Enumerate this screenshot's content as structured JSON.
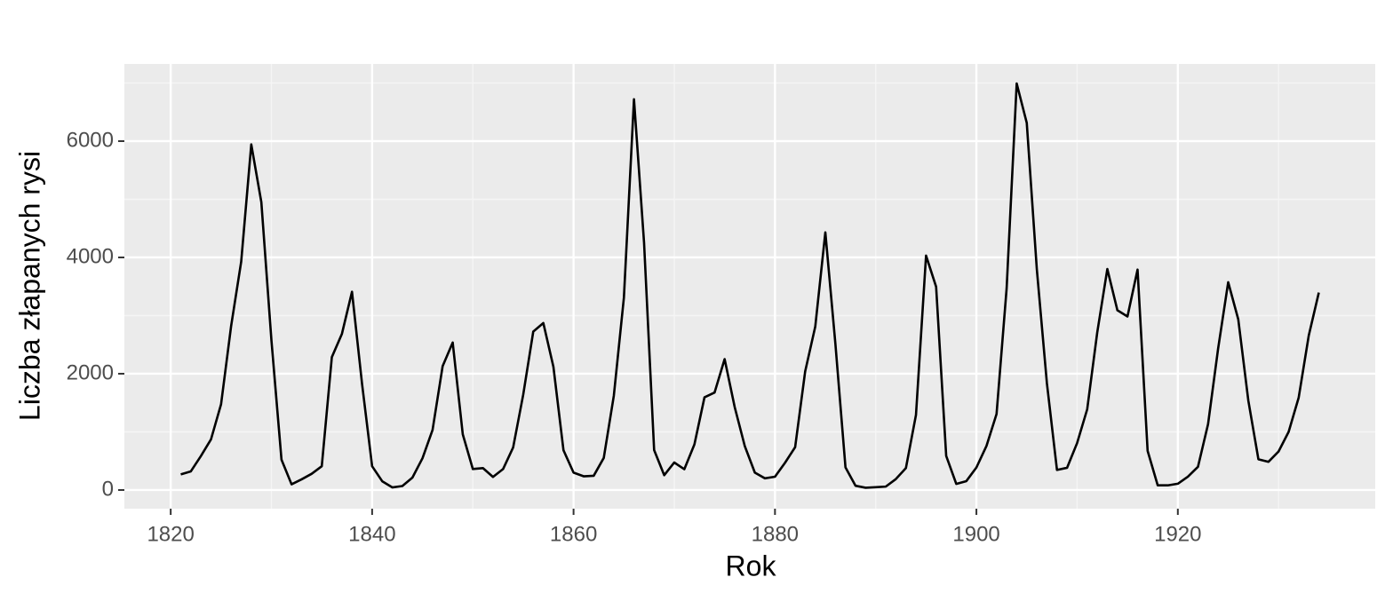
{
  "chart_data": {
    "type": "line",
    "x_label": "Rok",
    "y_label": "Liczba złapanych rysi",
    "x": [
      1821,
      1822,
      1823,
      1824,
      1825,
      1826,
      1827,
      1828,
      1829,
      1830,
      1831,
      1832,
      1833,
      1834,
      1835,
      1836,
      1837,
      1838,
      1839,
      1840,
      1841,
      1842,
      1843,
      1844,
      1845,
      1846,
      1847,
      1848,
      1849,
      1850,
      1851,
      1852,
      1853,
      1854,
      1855,
      1856,
      1857,
      1858,
      1859,
      1860,
      1861,
      1862,
      1863,
      1864,
      1865,
      1866,
      1867,
      1868,
      1869,
      1870,
      1871,
      1872,
      1873,
      1874,
      1875,
      1876,
      1877,
      1878,
      1879,
      1880,
      1881,
      1882,
      1883,
      1884,
      1885,
      1886,
      1887,
      1888,
      1889,
      1890,
      1891,
      1892,
      1893,
      1894,
      1895,
      1896,
      1897,
      1898,
      1899,
      1900,
      1901,
      1902,
      1903,
      1904,
      1905,
      1906,
      1907,
      1908,
      1909,
      1910,
      1911,
      1912,
      1913,
      1914,
      1915,
      1916,
      1917,
      1918,
      1919,
      1920,
      1921,
      1922,
      1923,
      1924,
      1925,
      1926,
      1927,
      1928,
      1929,
      1930,
      1931,
      1932,
      1933,
      1934
    ],
    "values": [
      269,
      321,
      585,
      871,
      1475,
      2821,
      3928,
      5943,
      4950,
      2577,
      523,
      98,
      184,
      279,
      409,
      2285,
      2685,
      3409,
      1824,
      409,
      151,
      45,
      68,
      213,
      546,
      1033,
      2129,
      2536,
      957,
      361,
      377,
      225,
      360,
      731,
      1638,
      2725,
      2871,
      2119,
      684,
      299,
      236,
      245,
      552,
      1623,
      3311,
      6721,
      4254,
      687,
      255,
      473,
      358,
      784,
      1594,
      1676,
      2251,
      1426,
      756,
      299,
      201,
      229,
      469,
      736,
      2042,
      2811,
      4431,
      2511,
      389,
      73,
      39,
      49,
      59,
      188,
      377,
      1292,
      4031,
      3495,
      587,
      105,
      153,
      387,
      758,
      1307,
      3465,
      6991,
      6313,
      3794,
      1836,
      345,
      382,
      808,
      1388,
      2713,
      3800,
      3091,
      2985,
      3790,
      674,
      81,
      80,
      108,
      229,
      399,
      1132,
      2432,
      3574,
      2935,
      1537,
      529,
      485,
      662,
      1000,
      1590,
      2657,
      3396
    ],
    "color": "#000000",
    "xlim": [
      1815.4,
      1939.6
    ],
    "xticks": [
      1820,
      1840,
      1860,
      1880,
      1900,
      1920
    ],
    "ylim": [
      -321,
      7328
    ],
    "yticks": [
      0,
      2000,
      4000,
      6000
    ],
    "grid": true
  }
}
